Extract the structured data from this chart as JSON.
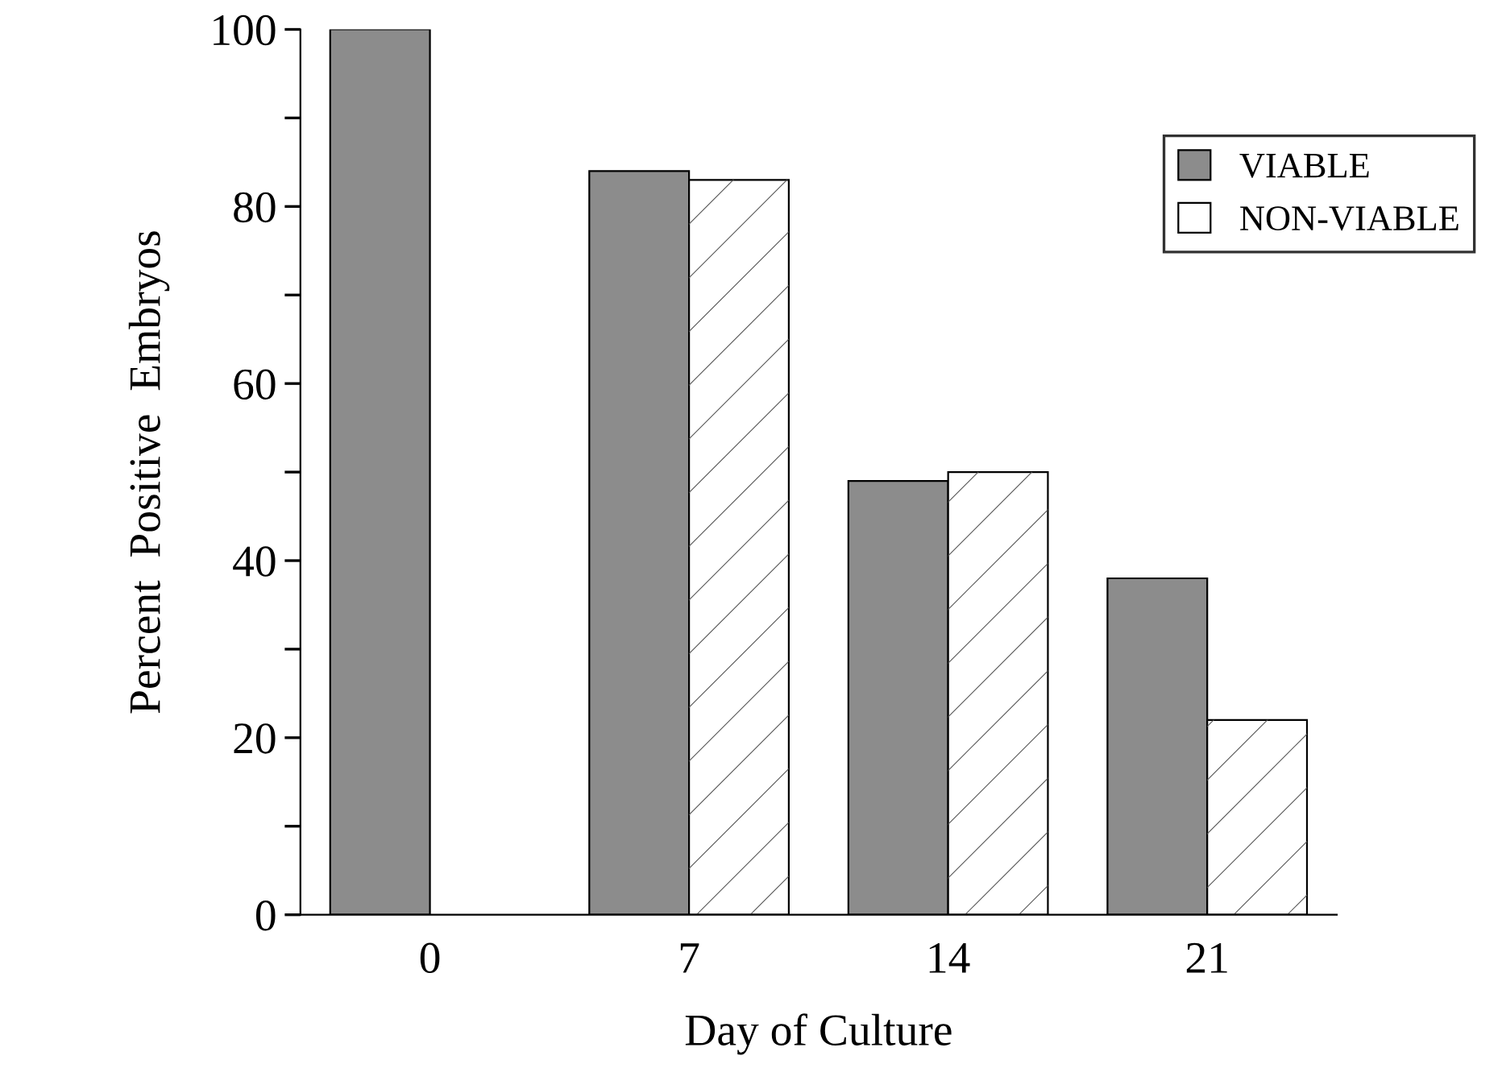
{
  "chart_data": {
    "type": "bar",
    "xlabel": "Day of Culture",
    "ylabel": "Percent  Positive  Embryos",
    "categories": [
      "0",
      "7",
      "14",
      "21"
    ],
    "series": [
      {
        "name": "VIABLE",
        "color": "#8c8c8c",
        "values": [
          100,
          84,
          49,
          38
        ]
      },
      {
        "name": "NON-VIABLE",
        "color": "#ffffff",
        "values": [
          null,
          83,
          50,
          22
        ]
      }
    ],
    "ylim": [
      0,
      100
    ],
    "yticks": [
      0,
      {
        "value": 10,
        "label": null
      },
      20,
      {
        "value": 30,
        "label": null
      },
      40,
      {
        "value": 50,
        "label": null
      },
      60,
      {
        "value": 70,
        "label": null
      },
      80,
      {
        "value": 90,
        "label": null
      },
      100
    ],
    "legend": "top right",
    "grid": false
  }
}
